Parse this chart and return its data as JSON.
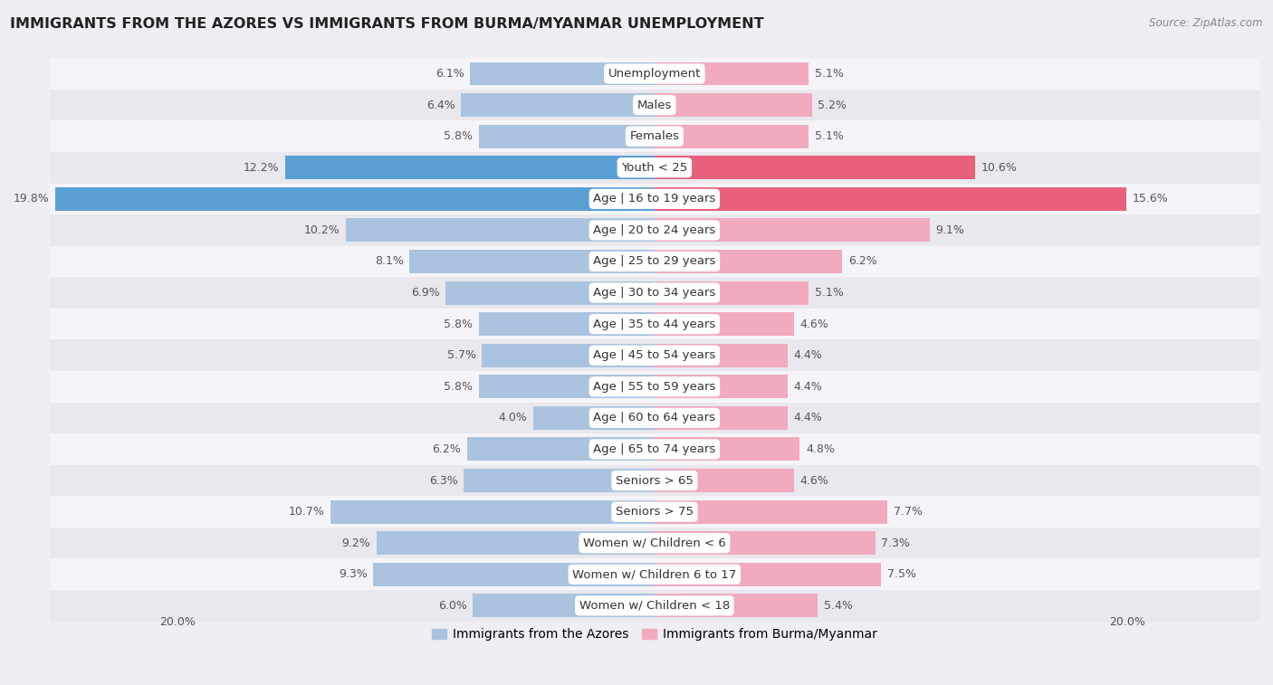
{
  "title": "IMMIGRANTS FROM THE AZORES VS IMMIGRANTS FROM BURMA/MYANMAR UNEMPLOYMENT",
  "source": "Source: ZipAtlas.com",
  "categories": [
    "Unemployment",
    "Males",
    "Females",
    "Youth < 25",
    "Age | 16 to 19 years",
    "Age | 20 to 24 years",
    "Age | 25 to 29 years",
    "Age | 30 to 34 years",
    "Age | 35 to 44 years",
    "Age | 45 to 54 years",
    "Age | 55 to 59 years",
    "Age | 60 to 64 years",
    "Age | 65 to 74 years",
    "Seniors > 65",
    "Seniors > 75",
    "Women w/ Children < 6",
    "Women w/ Children 6 to 17",
    "Women w/ Children < 18"
  ],
  "azores_values": [
    6.1,
    6.4,
    5.8,
    12.2,
    19.8,
    10.2,
    8.1,
    6.9,
    5.8,
    5.7,
    5.8,
    4.0,
    6.2,
    6.3,
    10.7,
    9.2,
    9.3,
    6.0
  ],
  "burma_values": [
    5.1,
    5.2,
    5.1,
    10.6,
    15.6,
    9.1,
    6.2,
    5.1,
    4.6,
    4.4,
    4.4,
    4.4,
    4.8,
    4.6,
    7.7,
    7.3,
    7.5,
    5.4
  ],
  "azores_color": "#aac4df",
  "burma_color": "#f2aabe",
  "azores_highlight_color": "#5a9fd4",
  "burma_highlight_color": "#e8607a",
  "highlight_rows": [
    3,
    4
  ],
  "bg_color": "#eeeef3",
  "row_bg_even": "#f5f5f9",
  "row_bg_odd": "#e8e8ee",
  "axis_limit": 20.0,
  "legend_azores": "Immigrants from the Azores",
  "legend_burma": "Immigrants from Burma/Myanmar",
  "label_fontsize": 9.5,
  "title_fontsize": 11.5,
  "value_fontsize": 9.0,
  "source_fontsize": 8.5,
  "bar_height": 0.75,
  "tick_label_left": "20.0%",
  "tick_label_right": "20.0%"
}
